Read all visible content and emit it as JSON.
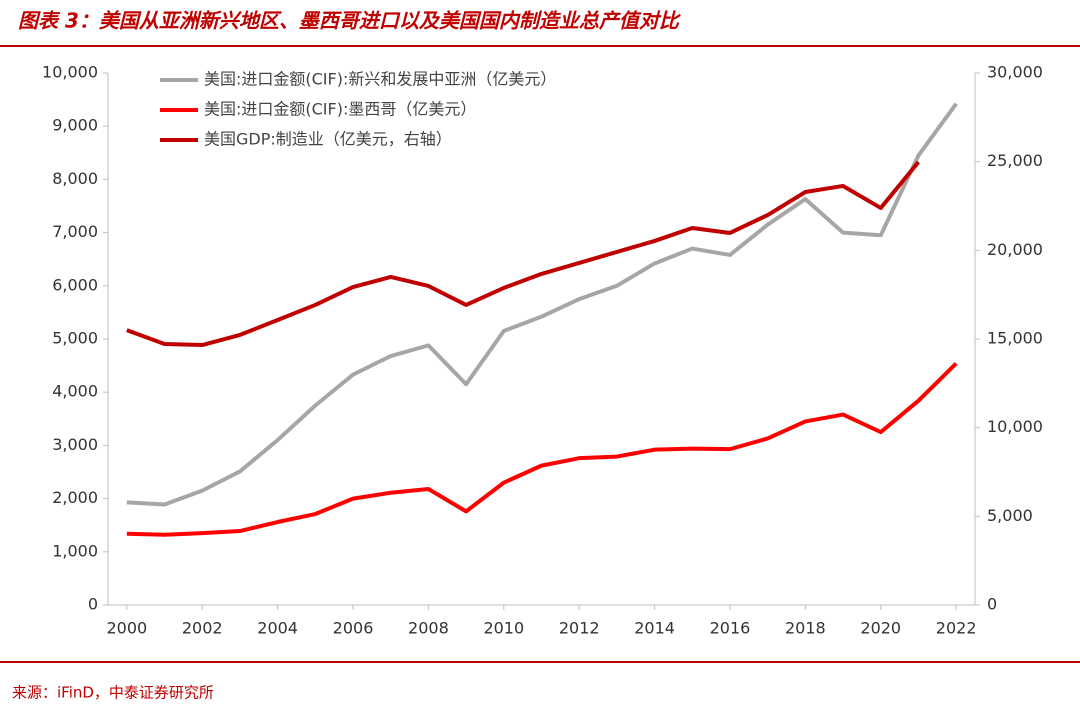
{
  "title": "图表 3：美国从亚洲新兴地区、墨西哥进口以及美国国内制造业总产值对比",
  "source": "来源：iFinD，中泰证券研究所",
  "chart_data": {
    "type": "line",
    "x": [
      2000,
      2001,
      2002,
      2003,
      2004,
      2005,
      2006,
      2007,
      2008,
      2009,
      2010,
      2011,
      2012,
      2013,
      2014,
      2015,
      2016,
      2017,
      2018,
      2019,
      2020,
      2021,
      2022
    ],
    "series": [
      {
        "name": "美国:进口金额(CIF):新兴和发展中亚洲（亿美元）",
        "color": "#a6a6a6",
        "values": [
          1930,
          1890,
          2150,
          2510,
          3100,
          3750,
          4330,
          4680,
          4880,
          4150,
          5150,
          5420,
          5750,
          6000,
          6420,
          6700,
          6580,
          7150,
          7630,
          7000,
          6950,
          8450,
          9420
        ]
      },
      {
        "name": "美国:进口金额(CIF):墨西哥（亿美元）",
        "color": "#ff0000",
        "values": [
          1340,
          1320,
          1350,
          1390,
          1560,
          1710,
          2000,
          2110,
          2180,
          1760,
          2300,
          2620,
          2760,
          2790,
          2920,
          2940,
          2930,
          3130,
          3450,
          3580,
          3250,
          3840,
          4540
        ]
      },
      {
        "name": "美国GDP:制造业（亿美元，右轴）",
        "color": "#c00000",
        "axis": "y2",
        "values": [
          15500,
          14720,
          14660,
          15230,
          16070,
          16920,
          17930,
          18500,
          17990,
          16920,
          17880,
          18670,
          19290,
          19910,
          20530,
          21260,
          20980,
          21990,
          23290,
          23630,
          22390,
          24980,
          null
        ]
      }
    ],
    "xlim": [
      1999.5,
      2022.5
    ],
    "xticks": [
      2000,
      2002,
      2004,
      2006,
      2008,
      2010,
      2012,
      2014,
      2016,
      2018,
      2020,
      2022
    ],
    "ylim": [
      0,
      10000
    ],
    "yticks": [
      0,
      {
        "value": 1000,
        "label": "1,000"
      },
      {
        "value": 2000,
        "label": "2,000"
      },
      {
        "value": 3000,
        "label": "3,000"
      },
      {
        "value": 4000,
        "label": "4,000"
      },
      {
        "value": 5000,
        "label": "5,000"
      },
      {
        "value": 6000,
        "label": "6,000"
      },
      {
        "value": 7000,
        "label": "7,000"
      },
      {
        "value": 8000,
        "label": "8,000"
      },
      {
        "value": 9000,
        "label": "9,000"
      },
      {
        "value": 10000,
        "label": "10,000"
      }
    ],
    "y2lim": [
      0,
      30000
    ],
    "y2ticks": [
      0,
      {
        "value": 5000,
        "label": "5,000"
      },
      {
        "value": 10000,
        "label": "10,000"
      },
      {
        "value": 15000,
        "label": "15,000"
      },
      {
        "value": 20000,
        "label": "20,000"
      },
      {
        "value": 25000,
        "label": "25,000"
      },
      {
        "value": 30000,
        "label": "30,000"
      }
    ],
    "legend": "upper left"
  }
}
